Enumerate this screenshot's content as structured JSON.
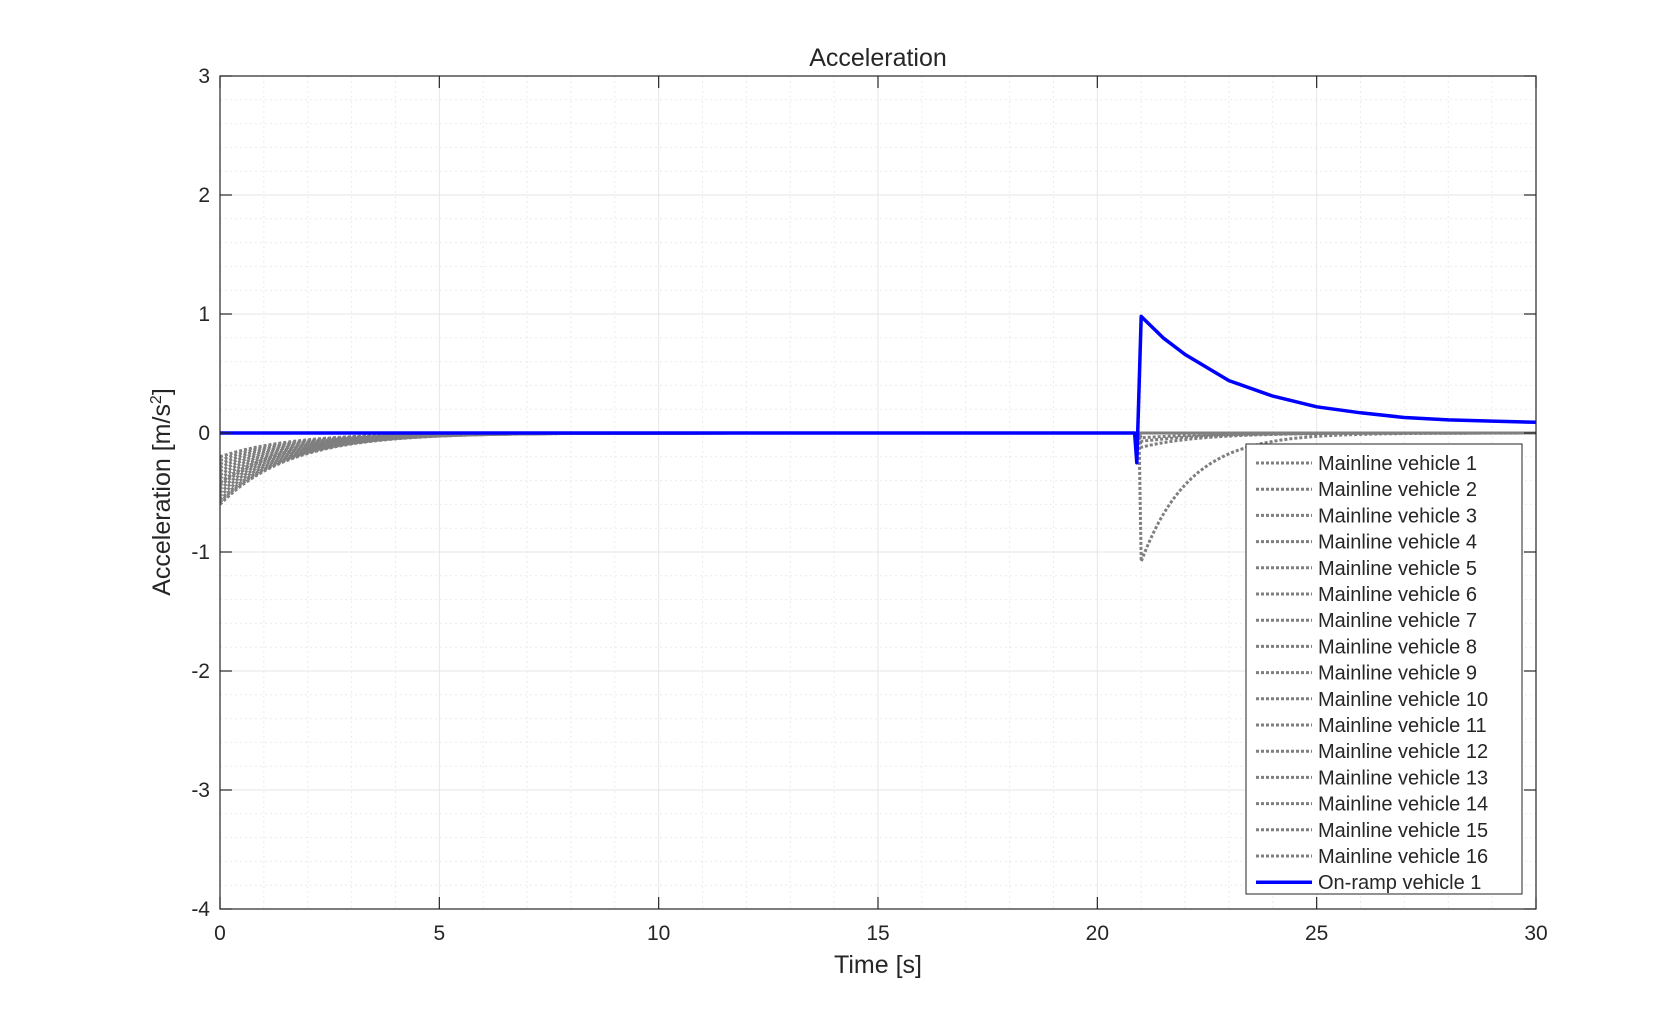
{
  "chart_data": {
    "type": "line",
    "title": "Acceleration",
    "xlabel": "Time [s]",
    "ylabel_text": "Acceleration  [m/s",
    "ylabel_sup": "2",
    "ylabel_close": "]",
    "xlim": [
      0,
      30
    ],
    "ylim": [
      -4,
      3
    ],
    "xticks": [
      "0",
      "5",
      "10",
      "15",
      "20",
      "25",
      "30"
    ],
    "yticks": [
      "-4",
      "-3",
      "-2",
      "-1",
      "0",
      "1",
      "2",
      "3"
    ],
    "grid": true,
    "minor_grid": true,
    "legend_position": "lower-right",
    "colors": {
      "mainline": "#7f7f7f",
      "onramp": "#0000ff",
      "grid": "#e6e6e6",
      "axes": "#262626"
    },
    "mainline_initial_accel": [
      -0.2,
      -0.23,
      -0.26,
      -0.29,
      -0.32,
      -0.35,
      -0.38,
      -0.41,
      -0.44,
      -0.47,
      -0.5,
      -0.53,
      -0.56,
      -0.58,
      -0.6,
      -0.42
    ],
    "mainline_decay_time_constant": 1.6,
    "series": [
      {
        "name": "Mainline vehicle 1",
        "style": "dotted",
        "event": {
          "t": 21,
          "dip": -1.08,
          "recover_tau": 1.1
        }
      },
      {
        "name": "Mainline vehicle 2",
        "style": "dotted",
        "event": {
          "t": 21,
          "dip": -0.12,
          "recover_tau": 1.3
        }
      },
      {
        "name": "Mainline vehicle 3",
        "style": "dotted",
        "event": {
          "t": 21,
          "dip": -0.07,
          "recover_tau": 1.5
        }
      },
      {
        "name": "Mainline vehicle 4",
        "style": "dotted",
        "event": {
          "t": 21,
          "dip": -0.04,
          "recover_tau": 1.7
        }
      },
      {
        "name": "Mainline vehicle 5",
        "style": "dotted"
      },
      {
        "name": "Mainline vehicle 6",
        "style": "dotted"
      },
      {
        "name": "Mainline vehicle 7",
        "style": "dotted"
      },
      {
        "name": "Mainline vehicle 8",
        "style": "dotted"
      },
      {
        "name": "Mainline vehicle 9",
        "style": "dotted"
      },
      {
        "name": "Mainline vehicle 10",
        "style": "dotted"
      },
      {
        "name": "Mainline vehicle 11",
        "style": "dotted"
      },
      {
        "name": "Mainline vehicle 12",
        "style": "dotted"
      },
      {
        "name": "Mainline vehicle 13",
        "style": "dotted"
      },
      {
        "name": "Mainline vehicle 14",
        "style": "dotted"
      },
      {
        "name": "Mainline vehicle 15",
        "style": "dotted"
      },
      {
        "name": "Mainline vehicle 16",
        "style": "dotted"
      },
      {
        "name": "On-ramp vehicle 1",
        "style": "solid"
      }
    ],
    "onramp": {
      "x": [
        0,
        20.85,
        20.9,
        21.0,
        21.5,
        22,
        23,
        24,
        25,
        26,
        27,
        28,
        29,
        30
      ],
      "y": [
        0,
        0,
        -0.25,
        0.98,
        0.8,
        0.66,
        0.44,
        0.31,
        0.22,
        0.17,
        0.13,
        0.11,
        0.1,
        0.09
      ]
    }
  }
}
